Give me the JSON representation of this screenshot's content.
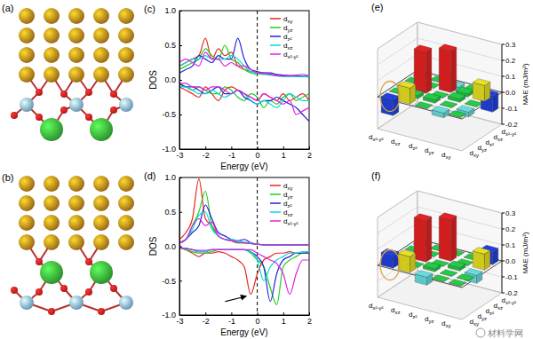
{
  "structures": [
    {
      "label": "(a)"
    },
    {
      "label": "(b)"
    }
  ],
  "watermark": "材料学网",
  "chart_data": [
    {
      "type": "line",
      "title": "(c)",
      "x_label": "Energy (eV)",
      "y_label": "DOS",
      "xlim": [
        -3,
        2
      ],
      "xticks": [
        -3,
        -2,
        -1,
        0,
        1,
        2
      ],
      "ylim": [
        -1,
        1
      ],
      "yticks": [
        {
          "value": -1,
          "label": "-1.0"
        },
        -0.5,
        {
          "value": 0,
          "label": "0.0"
        },
        0.5,
        {
          "value": 1,
          "label": "1.0"
        }
      ],
      "vline": 0,
      "legend": "upper right",
      "x": [
        -3,
        -2.75,
        -2.5,
        -2.25,
        -2,
        -1.75,
        -1.5,
        -1.25,
        -1,
        -0.75,
        -0.5,
        -0.25,
        0,
        0.25,
        0.5,
        0.75,
        1,
        1.25,
        1.5,
        1.75,
        2
      ],
      "series": [
        {
          "name": "dxy",
          "color": "#e8261f",
          "values": [
            0.2,
            0.25,
            0.3,
            0.35,
            0.6,
            0.3,
            0.45,
            0.35,
            0.4,
            0.2,
            0.15,
            0.12,
            0.1,
            0.08,
            0.08,
            0.07,
            0.06,
            0.06,
            0.05,
            0.05,
            0.05
          ],
          "spin_down": [
            -0.1,
            -0.15,
            -0.2,
            -0.25,
            -0.1,
            -0.2,
            -0.3,
            -0.15,
            -0.1,
            -0.15,
            -0.2,
            -0.25,
            -0.3,
            -0.2,
            -0.25,
            -0.3,
            -0.2,
            -0.3,
            -0.25,
            -0.2,
            -0.3
          ]
        },
        {
          "name": "dyz",
          "color": "#22cc22",
          "values": [
            0.15,
            0.2,
            0.25,
            0.3,
            0.45,
            0.35,
            0.3,
            0.5,
            0.3,
            0.25,
            0.15,
            0.1,
            0.08,
            0.1,
            0.08,
            0.06,
            0.05,
            0.05,
            0.06,
            0.05,
            0.04
          ],
          "spin_down": [
            -0.05,
            -0.1,
            -0.15,
            -0.1,
            -0.15,
            -0.2,
            -0.2,
            -0.1,
            -0.15,
            -0.25,
            -0.3,
            -0.2,
            -0.25,
            -0.4,
            -0.3,
            -0.35,
            -0.25,
            -0.2,
            -0.3,
            -0.25,
            -0.2
          ]
        },
        {
          "name": "dz²",
          "color": "#2222dd",
          "values": [
            0.1,
            0.15,
            0.2,
            0.35,
            0.3,
            0.25,
            0.35,
            0.3,
            0.3,
            0.6,
            0.3,
            0.15,
            0.12,
            0.1,
            0.1,
            0.08,
            0.07,
            0.06,
            0.06,
            0.05,
            0.05
          ],
          "spin_down": [
            -0.05,
            -0.1,
            -0.1,
            -0.15,
            -0.2,
            -0.15,
            -0.1,
            -0.2,
            -0.2,
            -0.15,
            -0.25,
            -0.3,
            -0.35,
            -0.3,
            -0.3,
            -0.25,
            -0.3,
            -0.35,
            -0.4,
            -0.5,
            -0.6
          ]
        },
        {
          "name": "dxz",
          "color": "#00d8d8",
          "values": [
            0.2,
            0.25,
            0.3,
            0.3,
            0.35,
            0.3,
            0.3,
            0.3,
            0.35,
            0.3,
            0.2,
            0.12,
            0.1,
            0.08,
            0.07,
            0.06,
            0.05,
            0.05,
            0.05,
            0.05,
            0.04
          ],
          "spin_down": [
            -0.1,
            -0.1,
            -0.15,
            -0.2,
            -0.2,
            -0.15,
            -0.2,
            -0.25,
            -0.2,
            -0.15,
            -0.2,
            -0.3,
            -0.35,
            -0.3,
            -0.35,
            -0.4,
            -0.3,
            -0.2,
            -0.25,
            -0.3,
            -0.3
          ]
        },
        {
          "name": "dx²-y²",
          "color": "#e020e0",
          "values": [
            0.25,
            0.3,
            0.25,
            0.2,
            0.4,
            0.3,
            0.3,
            0.2,
            0.25,
            0.2,
            0.2,
            0.15,
            0.1,
            0.1,
            0.08,
            0.06,
            0.06,
            0.06,
            0.07,
            0.08,
            0.06
          ],
          "spin_down": [
            -0.05,
            -0.05,
            -0.1,
            -0.1,
            -0.15,
            -0.1,
            -0.1,
            -0.15,
            -0.2,
            -0.15,
            -0.2,
            -0.25,
            -0.3,
            -0.2,
            -0.25,
            -0.3,
            -0.35,
            -0.3,
            -0.5,
            -0.45,
            -0.4
          ]
        }
      ]
    },
    {
      "type": "line",
      "title": "(d)",
      "x_label": "Energy (eV)",
      "y_label": "DOS",
      "xlim": [
        -3,
        2
      ],
      "xticks": [
        -3,
        -2,
        -1,
        0,
        1,
        2
      ],
      "ylim": [
        -1,
        1
      ],
      "yticks": [
        {
          "value": -1,
          "label": "-1.0"
        },
        -0.5,
        {
          "value": 0,
          "label": "0.0"
        },
        0.5,
        {
          "value": 1,
          "label": "1.0"
        }
      ],
      "vline": 0,
      "legend": "upper right",
      "x": [
        -3,
        -2.75,
        -2.5,
        -2.25,
        -2,
        -1.75,
        -1.5,
        -1.25,
        -1,
        -0.75,
        -0.5,
        -0.25,
        0,
        0.25,
        0.5,
        0.75,
        1,
        1.25,
        1.5,
        1.75,
        2
      ],
      "series": [
        {
          "name": "dxy",
          "color": "#e8261f",
          "values": [
            0.1,
            0.2,
            0.4,
            0.98,
            0.4,
            0.3,
            0.15,
            0.1,
            0.08,
            0.05,
            0.05,
            0.04,
            0.03,
            0.02,
            0.02,
            0.02,
            0.02,
            0.02,
            0.02,
            0.02,
            0.02
          ],
          "spin_down": [
            -0.02,
            -0.05,
            -0.1,
            -0.15,
            -0.1,
            -0.1,
            -0.08,
            -0.1,
            -0.15,
            -0.2,
            -0.3,
            -0.7,
            -0.4,
            -0.2,
            -0.15,
            -0.1,
            -0.1,
            -0.08,
            -0.1,
            -0.1,
            -0.08
          ]
        },
        {
          "name": "dyz",
          "color": "#22cc22",
          "values": [
            0.05,
            0.1,
            0.3,
            0.5,
            0.8,
            0.3,
            0.15,
            0.1,
            0.08,
            0.05,
            0.05,
            0.04,
            0.03,
            0.02,
            0.02,
            0.02,
            0.02,
            0.02,
            0.02,
            0.02,
            0.02
          ],
          "spin_down": [
            -0.02,
            -0.05,
            -0.08,
            -0.1,
            -0.1,
            -0.08,
            -0.05,
            -0.05,
            -0.05,
            -0.05,
            -0.05,
            -0.1,
            -0.2,
            -0.3,
            -0.6,
            -0.85,
            -0.3,
            -0.2,
            -0.15,
            -0.1,
            -0.1
          ]
        },
        {
          "name": "dz²",
          "color": "#2222dd",
          "values": [
            0.05,
            0.1,
            0.2,
            0.3,
            0.6,
            0.4,
            0.2,
            0.15,
            0.1,
            0.08,
            0.1,
            0.05,
            0.03,
            0.02,
            0.02,
            0.02,
            0.02,
            0.02,
            0.02,
            0.02,
            0.02
          ],
          "spin_down": [
            -0.02,
            -0.03,
            -0.05,
            -0.08,
            -0.08,
            -0.05,
            -0.05,
            -0.05,
            -0.05,
            -0.05,
            -0.05,
            -0.08,
            -0.15,
            -0.3,
            -0.8,
            -0.4,
            -0.2,
            -0.15,
            -0.1,
            -0.1,
            -0.1
          ]
        },
        {
          "name": "dxz",
          "color": "#00d8d8",
          "values": [
            0.05,
            0.1,
            0.25,
            0.45,
            0.5,
            0.25,
            0.15,
            0.1,
            0.1,
            0.08,
            0.06,
            0.05,
            0.03,
            0.02,
            0.02,
            0.02,
            0.02,
            0.02,
            0.02,
            0.02,
            0.02
          ],
          "spin_down": [
            -0.02,
            -0.03,
            -0.05,
            -0.08,
            -0.08,
            -0.05,
            -0.05,
            -0.05,
            -0.05,
            -0.05,
            -0.05,
            -0.08,
            -0.2,
            -0.5,
            -0.3,
            -0.2,
            -0.15,
            -0.1,
            -0.1,
            -0.08,
            -0.08
          ]
        },
        {
          "name": "dx²-y²",
          "color": "#e020e0",
          "values": [
            0.05,
            0.1,
            0.3,
            0.4,
            0.3,
            0.35,
            0.15,
            0.1,
            0.08,
            0.06,
            0.05,
            0.04,
            0.03,
            0.02,
            0.02,
            0.02,
            0.02,
            0.02,
            0.02,
            0.02,
            0.02
          ],
          "spin_down": [
            -0.02,
            -0.03,
            -0.05,
            -0.06,
            -0.06,
            -0.05,
            -0.05,
            -0.05,
            -0.05,
            -0.05,
            -0.05,
            -0.05,
            -0.1,
            -0.15,
            -0.2,
            -0.25,
            -0.4,
            -0.7,
            -0.4,
            -0.2,
            -0.2
          ]
        }
      ]
    },
    {
      "type": "bar3d",
      "title": "(e)",
      "z_label": "MAE (mJ/m²)",
      "rows": [
        "dx²-y²",
        "dxz",
        "dz²",
        "dyz",
        "dxy"
      ],
      "columns": [
        "dx²-y²",
        "dxz",
        "dz²",
        "dyz",
        "dxy"
      ],
      "zlim": [
        -0.2,
        0.3
      ],
      "zticks": [
        -0.2,
        -0.1,
        {
          "value": 0,
          "label": "0.0"
        },
        0.1,
        0.2,
        0.3
      ],
      "values": [
        [
          0,
          0,
          -0.03,
          0,
          -0.1
        ],
        [
          0,
          0,
          0.26,
          0.02,
          0.1
        ],
        [
          -0.03,
          0.26,
          0,
          0.02,
          0
        ],
        [
          0,
          0.02,
          0.02,
          0,
          -0.03
        ],
        [
          -0.1,
          0.1,
          0,
          -0.03,
          0
        ]
      ],
      "colors": [
        [
          "#22cc44",
          "#22cc44",
          "#66dddd",
          "#22cc44",
          "#2040e0"
        ],
        [
          "#22cc44",
          "#22cc44",
          "#e82020",
          "#22cc44",
          "#e8e020"
        ],
        [
          "#66dddd",
          "#e82020",
          "#22cc44",
          "#22cc44",
          "#22cc44"
        ],
        [
          "#22cc44",
          "#22cc44",
          "#22cc44",
          "#22cc44",
          "#66dddd"
        ],
        [
          "#2040e0",
          "#e8e020",
          "#22cc44",
          "#66dddd",
          "#22cc44"
        ]
      ]
    },
    {
      "type": "bar3d",
      "title": "(f)",
      "z_label": "MAE (mJ/m²)",
      "rows": [
        "dx²-y²",
        "dxz",
        "dz²",
        "dyz",
        "dxy"
      ],
      "columns": [
        "dx²-y²",
        "dxz",
        "dz²",
        "dyz",
        "dxy"
      ],
      "zlim": [
        -0.2,
        0.3
      ],
      "zticks": [
        -0.2,
        -0.1,
        {
          "value": 0,
          "label": "0.0"
        },
        0.1,
        0.2,
        0.3
      ],
      "values": [
        [
          0,
          0,
          0,
          0,
          0.08
        ],
        [
          0,
          0,
          0.26,
          0,
          0.1
        ],
        [
          0,
          0.26,
          0,
          0.02,
          -0.05
        ],
        [
          0,
          0,
          0.02,
          0,
          0
        ],
        [
          0.08,
          0.1,
          -0.05,
          0,
          0
        ]
      ],
      "colors": [
        [
          "#22cc44",
          "#22cc44",
          "#22cc44",
          "#22cc44",
          "#2040e0"
        ],
        [
          "#22cc44",
          "#22cc44",
          "#e82020",
          "#22cc44",
          "#e8e020"
        ],
        [
          "#22cc44",
          "#e82020",
          "#22cc44",
          "#22cc44",
          "#66dddd"
        ],
        [
          "#22cc44",
          "#22cc44",
          "#22cc44",
          "#22cc44",
          "#22cc44"
        ],
        [
          "#2040e0",
          "#e8e020",
          "#66dddd",
          "#22cc44",
          "#22cc44"
        ]
      ]
    }
  ]
}
